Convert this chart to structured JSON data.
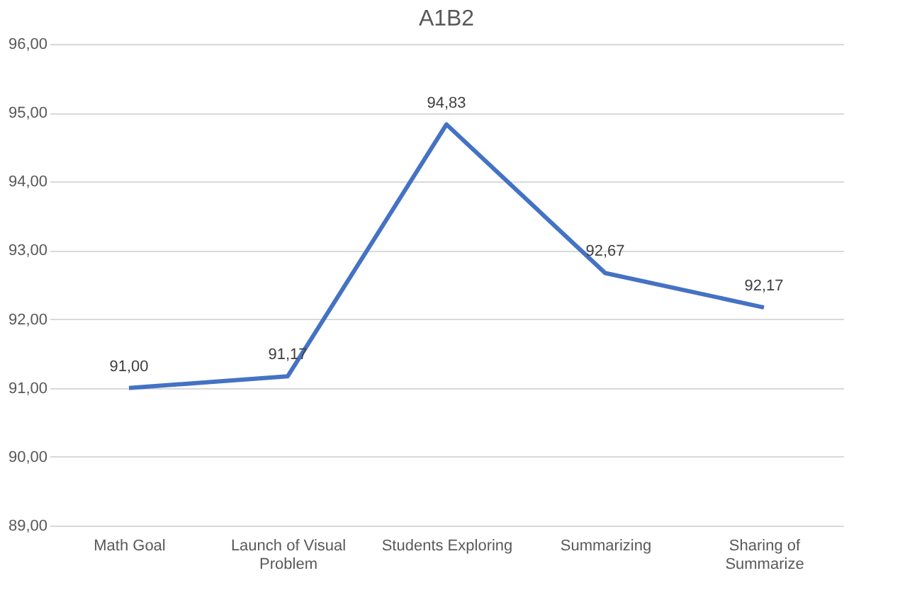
{
  "chart_data": {
    "type": "line",
    "title": "A1B2",
    "categories": [
      "Math Goal",
      "Launch of Visual Problem",
      "Students Exploring",
      "Summarizing",
      "Sharing of Summarize"
    ],
    "series": [
      {
        "color": "#4472c4",
        "values": [
          91.0,
          91.17,
          94.83,
          92.67,
          92.17
        ],
        "value_labels": [
          "91,00",
          "91,17",
          "94,83",
          "92,67",
          "92,17"
        ]
      }
    ],
    "ylim": [
      89,
      96
    ],
    "yticks": [
      {
        "value": 89,
        "label": "89,00"
      },
      {
        "value": 90,
        "label": "90,00"
      },
      {
        "value": 91,
        "label": "91,00"
      },
      {
        "value": 92,
        "label": "92,00"
      },
      {
        "value": 93,
        "label": "93,00"
      },
      {
        "value": 94,
        "label": "94,00"
      },
      {
        "value": 95,
        "label": "95,00"
      },
      {
        "value": 96,
        "label": "96,00"
      }
    ],
    "grid": "y",
    "marker": "none",
    "line_style": "solid"
  }
}
